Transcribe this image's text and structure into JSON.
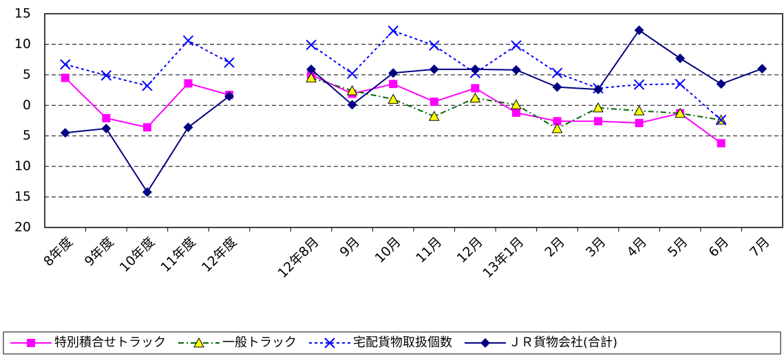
{
  "chart_data": {
    "type": "line",
    "categories": [
      "8年度",
      "9年度",
      "10年度",
      "11年度",
      "12年度",
      null,
      "12年8月",
      "9月",
      "10月",
      "11月",
      "12月",
      "13年1月",
      "2月",
      "3月",
      "4月",
      "5月",
      "6月",
      "7月"
    ],
    "series": [
      {
        "name": "特別積合せトラック",
        "color": "#ff00ff",
        "marker": "square",
        "dash": "solid",
        "values": [
          4.5,
          -2.1,
          -3.6,
          3.6,
          1.7,
          null,
          5.0,
          1.9,
          3.5,
          0.6,
          2.8,
          -1.2,
          -2.6,
          -2.6,
          -2.9,
          -1.3,
          -6.2,
          null
        ]
      },
      {
        "name": "一般トラック",
        "color": "#006400",
        "marker": "triangle",
        "marker_fill": "#ffff00",
        "dash": "dashdot",
        "values": [
          null,
          null,
          null,
          null,
          null,
          null,
          4.5,
          2.4,
          1.0,
          -1.8,
          1.2,
          0.1,
          -3.8,
          -0.4,
          -0.9,
          -1.3,
          -2.4,
          null
        ]
      },
      {
        "name": "宅配貨物取扱個数",
        "color": "#0000ff",
        "marker": "cross",
        "dash": "dotted",
        "values": [
          6.7,
          4.9,
          3.2,
          10.6,
          7.0,
          null,
          9.9,
          5.2,
          12.2,
          9.8,
          5.3,
          9.8,
          5.3,
          2.8,
          3.4,
          3.5,
          -2.4,
          null
        ]
      },
      {
        "name": "ＪＲ貨物会社(合計)",
        "color": "#000080",
        "marker": "diamond",
        "dash": "solid",
        "values": [
          -4.5,
          -3.8,
          -14.2,
          -3.6,
          1.5,
          null,
          5.9,
          0.1,
          5.3,
          5.9,
          5.9,
          5.8,
          3.0,
          2.6,
          12.3,
          7.7,
          3.5,
          6.0
        ]
      }
    ],
    "ylim": [
      -20,
      15
    ],
    "yticks": [
      {
        "value": -20,
        "label": "20"
      },
      {
        "value": -15,
        "label": "15"
      },
      {
        "value": -10,
        "label": "10"
      },
      {
        "value": -5,
        "label": "5"
      },
      0,
      5,
      10,
      15
    ],
    "grid": true,
    "legend": "bottom"
  }
}
